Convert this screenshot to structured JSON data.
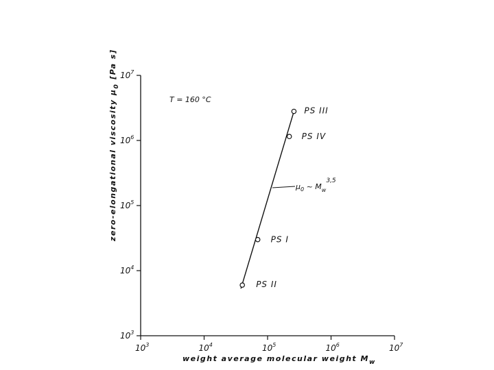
{
  "chart_data": {
    "type": "scatter",
    "xscale": "log",
    "yscale": "log",
    "xlim": [
      1000,
      10000000
    ],
    "ylim": [
      1000,
      10000000
    ],
    "xlabel": "weight average molecular weight M",
    "xlabel_sub": "w",
    "ylabel": "zero-elongational viscosity  μ",
    "ylabel_sub": "0",
    "ylabel_unit": "[Pa s]",
    "annotation": "T = 160 °C",
    "x_ticks": [
      {
        "base": "10",
        "exp": "3",
        "value": 1000
      },
      {
        "base": "10",
        "exp": "4",
        "value": 10000
      },
      {
        "base": "10",
        "exp": "5",
        "value": 100000
      },
      {
        "base": "10",
        "exp": "6",
        "value": 1000000
      },
      {
        "base": "10",
        "exp": "7",
        "value": 10000000
      }
    ],
    "y_ticks": [
      {
        "base": "10",
        "exp": "3",
        "value": 1000
      },
      {
        "base": "10",
        "exp": "4",
        "value": 10000
      },
      {
        "base": "10",
        "exp": "5",
        "value": 100000
      },
      {
        "base": "10",
        "exp": "6",
        "value": 1000000
      },
      {
        "base": "10",
        "exp": "7",
        "value": 10000000
      }
    ],
    "points": [
      {
        "label": "PS II",
        "x": 40000,
        "y": 6000
      },
      {
        "label": "PS I",
        "x": 70000,
        "y": 30000
      },
      {
        "label": "PS IV",
        "x": 220000,
        "y": 1150000
      },
      {
        "label": "PS III",
        "x": 260000,
        "y": 2800000
      }
    ],
    "fit_line": {
      "x": [
        38000,
        260000
      ],
      "y": [
        5300,
        2800000
      ]
    },
    "fit_label": {
      "mu": "μ",
      "sub0": "0",
      "tilde": " ~ M",
      "subw": "w",
      "exp": "3,5"
    }
  }
}
